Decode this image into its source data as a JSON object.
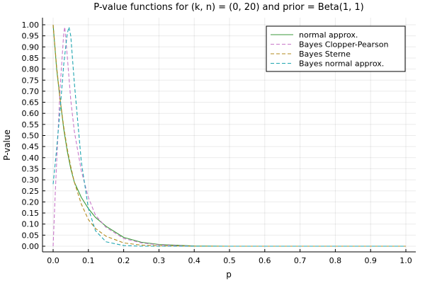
{
  "chart_data": {
    "type": "line",
    "title": "P-value functions for (k, n) = (0, 20) and prior = Beta(1, 1)",
    "xlabel": "p",
    "ylabel": "P-value",
    "xlim": [
      0.0,
      1.0
    ],
    "ylim": [
      0.0,
      1.0
    ],
    "xticks": [
      "0.0",
      "0.1",
      "0.2",
      "0.3",
      "0.4",
      "0.5",
      "0.6",
      "0.7",
      "0.8",
      "0.9",
      "1.0"
    ],
    "yticks": [
      "0.00",
      "0.05",
      "0.10",
      "0.15",
      "0.20",
      "0.25",
      "0.30",
      "0.35",
      "0.40",
      "0.45",
      "0.50",
      "0.55",
      "0.60",
      "0.65",
      "0.70",
      "0.75",
      "0.80",
      "0.85",
      "0.90",
      "0.95",
      "1.00"
    ],
    "grid": true,
    "legend_position": "top-right",
    "series": [
      {
        "name": "normal approx.",
        "color": "#3b9a3b",
        "dash": "solid",
        "x": [
          0.0,
          0.01,
          0.02,
          0.03,
          0.04,
          0.05,
          0.06,
          0.08,
          0.1,
          0.12,
          0.15,
          0.2,
          0.25,
          0.3,
          0.4,
          0.5,
          1.0
        ],
        "y": [
          1.0,
          0.8,
          0.66,
          0.53,
          0.43,
          0.35,
          0.29,
          0.22,
          0.17,
          0.13,
          0.09,
          0.04,
          0.018,
          0.008,
          0.001,
          0.0,
          0.0
        ]
      },
      {
        "name": "Bayes Clopper-Pearson",
        "color": "#c978c9",
        "dash": "dashed",
        "x": [
          0.0,
          0.005,
          0.01,
          0.02,
          0.03,
          0.033,
          0.04,
          0.05,
          0.06,
          0.08,
          0.1,
          0.12,
          0.15,
          0.2,
          0.25,
          0.3,
          0.4,
          0.5,
          1.0
        ],
        "y": [
          0.0,
          0.2,
          0.38,
          0.72,
          0.96,
          0.99,
          0.86,
          0.66,
          0.52,
          0.34,
          0.22,
          0.14,
          0.085,
          0.035,
          0.015,
          0.006,
          0.0,
          0.0,
          0.0
        ]
      },
      {
        "name": "Bayes Sterne",
        "color": "#b38a1e",
        "dash": "dashed",
        "x": [
          0.0,
          0.01,
          0.02,
          0.03,
          0.04,
          0.05,
          0.06,
          0.08,
          0.1,
          0.12,
          0.15,
          0.2,
          0.25,
          0.3,
          0.4,
          0.5,
          1.0
        ],
        "y": [
          1.0,
          0.81,
          0.66,
          0.54,
          0.44,
          0.36,
          0.29,
          0.19,
          0.12,
          0.08,
          0.045,
          0.015,
          0.005,
          0.002,
          0.0,
          0.0,
          0.0
        ]
      },
      {
        "name": "Bayes normal approx.",
        "color": "#1fa5b0",
        "dash": "dashed",
        "x": [
          0.0,
          0.01,
          0.02,
          0.03,
          0.04,
          0.045,
          0.05,
          0.06,
          0.08,
          0.1,
          0.12,
          0.15,
          0.2,
          0.25,
          0.3,
          0.4,
          1.0
        ],
        "y": [
          0.28,
          0.44,
          0.62,
          0.82,
          0.96,
          0.99,
          0.95,
          0.74,
          0.38,
          0.17,
          0.07,
          0.02,
          0.003,
          0.0,
          0.0,
          0.0,
          0.0
        ]
      }
    ]
  }
}
